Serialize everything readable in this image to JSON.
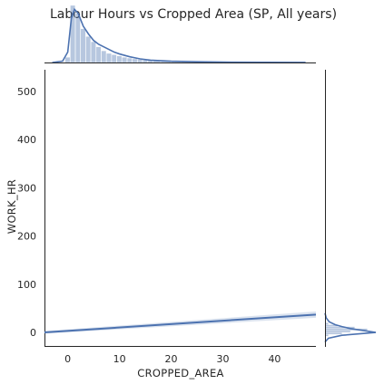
{
  "chart_data": {
    "type": "scatter",
    "title": "Labour Hours vs Cropped Area (SP, All years)",
    "xlabel": "CROPPED_AREA",
    "ylabel": "WORK_HR",
    "xlim": [
      -4.5,
      48
    ],
    "ylim": [
      -30,
      545
    ],
    "xticks": [
      "0",
      "10",
      "20",
      "30",
      "40"
    ],
    "yticks": [
      "0",
      "100",
      "200",
      "300",
      "400",
      "500"
    ],
    "regression_line": {
      "x": [
        -4.5,
        48
      ],
      "y": [
        0,
        37
      ]
    },
    "grid": false,
    "color": "#4c72b0",
    "marginal_x_histogram": {
      "bin_edges": [
        -4.5,
        -3.5,
        -2.5,
        -1.5,
        -0.5,
        0.5,
        1.5,
        2.5,
        3.5,
        4.5,
        5.5,
        6.5,
        7.5,
        8.5,
        9.5,
        10.5,
        11.5,
        12.5,
        13.5,
        14.5,
        15.5,
        16.5,
        18,
        20,
        22,
        24,
        28,
        34,
        42,
        48
      ],
      "density": [
        0,
        0,
        0,
        0,
        0.02,
        0.22,
        0.19,
        0.13,
        0.1,
        0.08,
        0.06,
        0.045,
        0.035,
        0.03,
        0.025,
        0.02,
        0.017,
        0.014,
        0.012,
        0.01,
        0.008,
        0.007,
        0.006,
        0.005,
        0.004,
        0.003,
        0.002,
        0.001,
        0.0005
      ],
      "kde_x": [
        -3,
        -1,
        0,
        0.7,
        1.3,
        2,
        3,
        4,
        5,
        6,
        7,
        8,
        9,
        10,
        12,
        14,
        16,
        20,
        25,
        30,
        38,
        46
      ],
      "kde_y": [
        0,
        0.005,
        0.04,
        0.17,
        0.205,
        0.19,
        0.14,
        0.11,
        0.085,
        0.07,
        0.06,
        0.05,
        0.04,
        0.033,
        0.022,
        0.014,
        0.009,
        0.005,
        0.003,
        0.0015,
        0.0007,
        0.0002
      ]
    },
    "marginal_y_histogram": {
      "bin_edges": [
        -8,
        -4,
        0,
        4,
        8,
        12,
        16,
        20
      ],
      "density": [
        0.004,
        0.02,
        0.03,
        0.05,
        0.035,
        0.015,
        0.004
      ],
      "kde_y": [
        -20,
        -12,
        -6,
        0,
        4,
        8,
        12,
        16,
        22,
        30,
        40
      ],
      "kde_x": [
        0,
        0.004,
        0.02,
        0.06,
        0.045,
        0.03,
        0.02,
        0.012,
        0.005,
        0.0015,
        0
      ]
    }
  }
}
